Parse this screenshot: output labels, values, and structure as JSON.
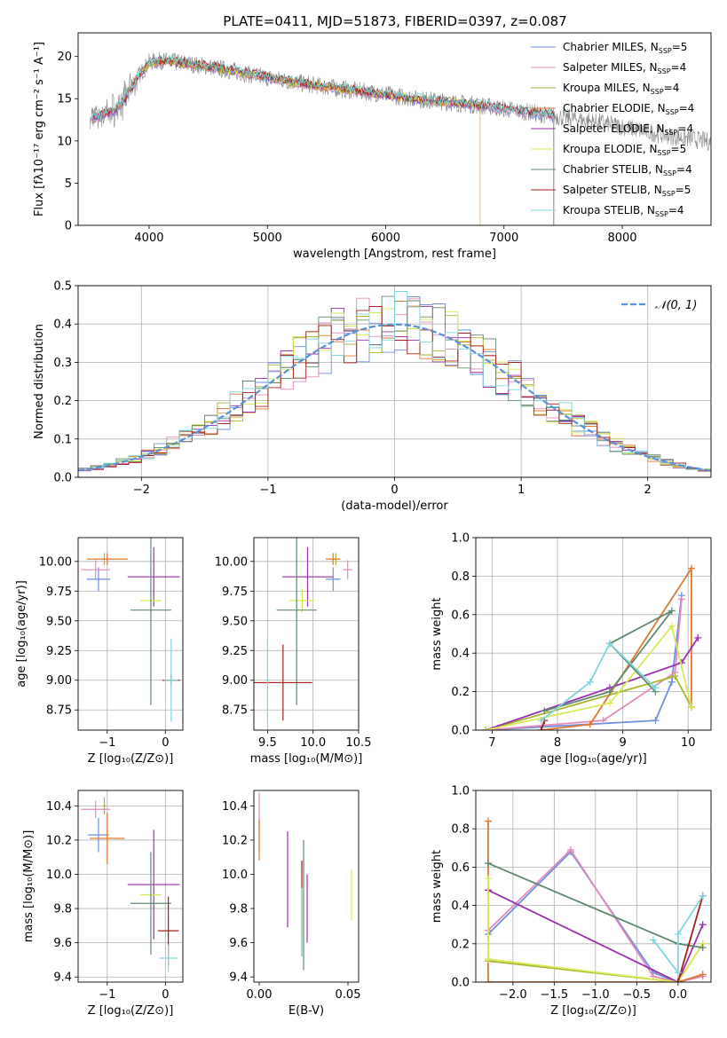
{
  "figure_title": "PLATE=0411, MJD=51873, FIBERID=0397, z=0.087",
  "colors": {
    "chabrier_miles": "#6d8fdd",
    "salpeter_miles": "#e48bbb",
    "kroupa_miles": "#a9b52b",
    "chabrier_elodie": "#e0782e",
    "salpeter_elodie": "#9b2fae",
    "kroupa_elodie": "#d7ea55",
    "chabrier_stelib": "#5e8a6e",
    "salpeter_stelib": "#a81d1d",
    "kroupa_stelib": "#7dd5dd",
    "spectrum_gray": "#8a8a8a",
    "light_gray": "#b0b0b0",
    "normal_curve": "#5b8fd6"
  },
  "chart_data": [
    {
      "id": "spectrum",
      "type": "line",
      "xlabel": "wavelength [Angstrom, rest frame]",
      "ylabel": "Flux [fλ10⁻¹⁷ erg cm⁻² s⁻¹ A⁻¹]",
      "xlim": [
        3400,
        8750
      ],
      "ylim": [
        0,
        22.8
      ],
      "xticks": [
        4000,
        5000,
        6000,
        7000,
        8000
      ],
      "yticks": [
        0,
        5,
        10,
        15,
        20
      ],
      "grid": false,
      "legend_position": "top-right",
      "legend": [
        {
          "label": "Chabrier MILES, N",
          "sub": "SSP",
          "n": "=5",
          "color_key": "chabrier_miles"
        },
        {
          "label": "Salpeter MILES, N",
          "sub": "SSP",
          "n": "=4",
          "color_key": "salpeter_miles"
        },
        {
          "label": "Kroupa MILES, N",
          "sub": "SSP",
          "n": "=4",
          "color_key": "kroupa_miles"
        },
        {
          "label": "Chabrier ELODIE, N",
          "sub": "SSP",
          "n": "=4",
          "color_key": "chabrier_elodie"
        },
        {
          "label": "Salpeter ELODIE, N",
          "sub": "SSP",
          "n": "=4",
          "color_key": "salpeter_elodie"
        },
        {
          "label": "Kroupa ELODIE, N",
          "sub": "SSP",
          "n": "=5",
          "color_key": "kroupa_elodie"
        },
        {
          "label": "Chabrier STELIB, N",
          "sub": "SSP",
          "n": "=4",
          "color_key": "chabrier_stelib"
        },
        {
          "label": "Salpeter STELIB, N",
          "sub": "SSP",
          "n": "=5",
          "color_key": "salpeter_stelib"
        },
        {
          "label": "Kroupa STELIB, N",
          "sub": "SSP",
          "n": "=4",
          "color_key": "kroupa_stelib"
        }
      ],
      "continuum": {
        "x": [
          3500,
          3600,
          3700,
          3800,
          3900,
          4000,
          4100,
          4300,
          4500,
          4700,
          5000,
          5300,
          5600,
          6000,
          6300,
          6600,
          6800,
          7000,
          7200,
          7400,
          7600,
          7800,
          8000,
          8200,
          8400,
          8600,
          8750
        ],
        "y": [
          12.5,
          13.0,
          13.5,
          15.0,
          17.5,
          19.3,
          19.5,
          19.2,
          18.8,
          18.3,
          17.5,
          16.8,
          16.2,
          15.5,
          14.9,
          14.5,
          14.2,
          13.8,
          13.4,
          13.0,
          12.6,
          12.2,
          11.7,
          11.1,
          10.6,
          10.2,
          9.9
        ]
      }
    },
    {
      "id": "residuals",
      "type": "histogram",
      "xlabel": "(data-model)/error",
      "ylabel": "Normed distribution",
      "xlim": [
        -2.5,
        2.5
      ],
      "ylim": [
        0,
        0.5
      ],
      "xticks": [
        -2,
        -1,
        0,
        1,
        2
      ],
      "yticks": [
        0.0,
        0.1,
        0.2,
        0.3,
        0.4,
        0.5
      ],
      "grid": true,
      "legend_position": "top-right",
      "legend_label": "𝒩(0, 1)",
      "reference_curve": "gaussian mean 0, sigma 1"
    },
    {
      "id": "age_vs_Z",
      "type": "scatter",
      "xlabel": "Z [log₁₀(Z/Z⊙)]",
      "ylabel": "age  [log₁₀(age/yr)]",
      "xlim": [
        -1.5,
        0.3
      ],
      "ylim": [
        8.58,
        10.2
      ],
      "xticks": [
        -1,
        0
      ],
      "yticks": [
        8.75,
        9.0,
        9.25,
        9.5,
        9.75,
        10.0
      ],
      "grid": true,
      "points": [
        {
          "color_key": "chabrier_miles",
          "x": -1.15,
          "y": 9.85,
          "xerr": 0.2,
          "yerr": 0.1
        },
        {
          "color_key": "salpeter_miles",
          "x": -1.2,
          "y": 9.93,
          "xerr": 0.25,
          "yerr": 0.08
        },
        {
          "color_key": "kroupa_miles",
          "x": -1.05,
          "y": 10.02,
          "xerr": 0.05,
          "yerr": 0.05
        },
        {
          "color_key": "chabrier_elodie",
          "x": -1.0,
          "y": 10.02,
          "xerr": 0.35,
          "yerr": 0.05
        },
        {
          "color_key": "salpeter_elodie",
          "x": -0.2,
          "y": 9.87,
          "xerr": 0.45,
          "yerr": 0.25
        },
        {
          "color_key": "kroupa_elodie",
          "x": -0.25,
          "y": 9.67,
          "xerr": 0.18,
          "yerr": 0.1
        },
        {
          "color_key": "chabrier_stelib",
          "x": -0.25,
          "y": 9.59,
          "xerr": 0.35,
          "yerr": 0.8
        },
        {
          "color_key": "salpeter_stelib",
          "x": 0.1,
          "y": 9.0,
          "xerr": 0.15,
          "yerr": 0.05
        },
        {
          "color_key": "kroupa_stelib",
          "x": 0.1,
          "y": 9.0,
          "xerr": 0.12,
          "yerr": 0.35
        }
      ]
    },
    {
      "id": "age_vs_mass",
      "type": "scatter",
      "xlabel": "mass [log₁₀(M/M⊙)]",
      "ylabel": "",
      "xlim": [
        9.35,
        10.5
      ],
      "ylim": [
        8.58,
        10.2
      ],
      "xticks": [
        9.5,
        10.0,
        10.5
      ],
      "yticks": [
        8.75,
        9.0,
        9.25,
        9.5,
        9.75,
        10.0
      ],
      "grid": true,
      "points": [
        {
          "color_key": "chabrier_miles",
          "x": 10.22,
          "y": 9.85,
          "xerr": 0.08,
          "yerr": 0.1
        },
        {
          "color_key": "salpeter_miles",
          "x": 10.38,
          "y": 9.93,
          "xerr": 0.05,
          "yerr": 0.08
        },
        {
          "color_key": "kroupa_miles",
          "x": 10.25,
          "y": 10.02,
          "xerr": 0.05,
          "yerr": 0.05
        },
        {
          "color_key": "chabrier_elodie",
          "x": 10.22,
          "y": 10.02,
          "xerr": 0.08,
          "yerr": 0.05
        },
        {
          "color_key": "salpeter_elodie",
          "x": 9.94,
          "y": 9.87,
          "xerr": 0.28,
          "yerr": 0.25
        },
        {
          "color_key": "kroupa_elodie",
          "x": 9.88,
          "y": 9.67,
          "xerr": 0.14,
          "yerr": 0.1
        },
        {
          "color_key": "chabrier_stelib",
          "x": 9.82,
          "y": 9.59,
          "xerr": 0.22,
          "yerr": 0.8
        },
        {
          "color_key": "salpeter_stelib",
          "x": 9.67,
          "y": 8.98,
          "xerr": 0.32,
          "yerr": 0.32
        },
        {
          "color_key": "kroupa_stelib",
          "x": 9.5,
          "y": 9.0,
          "xerr": 0.02,
          "yerr": 0.35
        }
      ]
    },
    {
      "id": "mass_weight_vs_age",
      "type": "line",
      "xlabel": "age  [log₁₀(age/yr)]",
      "ylabel": "mass weight",
      "xlim": [
        6.75,
        10.35
      ],
      "ylim": [
        0,
        1.0
      ],
      "xticks": [
        7,
        8,
        9,
        10
      ],
      "yticks": [
        0.0,
        0.2,
        0.4,
        0.6,
        0.8,
        1.0
      ],
      "grid": true,
      "series": [
        {
          "color_key": "chabrier_miles",
          "x": [
            6.9,
            9.5,
            9.75,
            9.9
          ],
          "y": [
            0.0,
            0.05,
            0.25,
            0.7
          ]
        },
        {
          "color_key": "salpeter_miles",
          "x": [
            6.9,
            8.7,
            9.8,
            9.9
          ],
          "y": [
            0.0,
            0.05,
            0.3,
            0.68
          ]
        },
        {
          "color_key": "kroupa_miles",
          "x": [
            6.9,
            9.8,
            10.05
          ],
          "y": [
            0.0,
            0.28,
            0.12
          ]
        },
        {
          "color_key": "chabrier_elodie",
          "x": [
            7.75,
            8.5,
            10.05,
            10.05
          ],
          "y": [
            0.0,
            0.03,
            0.84,
            0.12
          ]
        },
        {
          "color_key": "salpeter_elodie",
          "x": [
            6.9,
            8.8,
            9.9,
            10.15
          ],
          "y": [
            0.0,
            0.22,
            0.35,
            0.48
          ]
        },
        {
          "color_key": "kroupa_elodie",
          "x": [
            6.9,
            8.8,
            9.75,
            10.05
          ],
          "y": [
            0.0,
            0.14,
            0.54,
            0.12
          ]
        },
        {
          "color_key": "chabrier_stelib",
          "x": [
            7.8,
            8.8,
            9.75,
            8.8,
            9.5
          ],
          "y": [
            0.1,
            0.2,
            0.62,
            0.45,
            0.2
          ]
        },
        {
          "color_key": "salpeter_stelib",
          "x": [
            7.75,
            7.8
          ],
          "y": [
            0.0,
            0.05
          ]
        },
        {
          "color_key": "kroupa_stelib",
          "x": [
            7.75,
            8.5,
            8.8,
            9.5
          ],
          "y": [
            0.05,
            0.25,
            0.45,
            0.22
          ]
        }
      ]
    },
    {
      "id": "mass_vs_Z",
      "type": "scatter",
      "xlabel": "Z [log₁₀(Z/Z⊙)]",
      "ylabel": "mass [log₁₀(M/M⊙)]",
      "xlim": [
        -1.5,
        0.3
      ],
      "ylim": [
        9.37,
        10.49
      ],
      "xticks": [
        -1,
        0
      ],
      "yticks": [
        9.4,
        9.6,
        9.8,
        10.0,
        10.2,
        10.4
      ],
      "grid": true,
      "points": [
        {
          "color_key": "chabrier_miles",
          "x": -1.15,
          "y": 10.23,
          "xerr": 0.18,
          "yerr": 0.1
        },
        {
          "color_key": "salpeter_miles",
          "x": -1.2,
          "y": 10.38,
          "xerr": 0.25,
          "yerr": 0.05
        },
        {
          "color_key": "kroupa_miles",
          "x": -1.05,
          "y": 10.4,
          "xerr": 0.03,
          "yerr": 0.05
        },
        {
          "color_key": "chabrier_elodie",
          "x": -1.0,
          "y": 10.21,
          "xerr": 0.3,
          "yerr": 0.15
        },
        {
          "color_key": "salpeter_elodie",
          "x": -0.2,
          "y": 9.94,
          "xerr": 0.45,
          "yerr": 0.32
        },
        {
          "color_key": "kroupa_elodie",
          "x": -0.25,
          "y": 9.88,
          "xerr": 0.18,
          "yerr": 0.08
        },
        {
          "color_key": "chabrier_stelib",
          "x": -0.25,
          "y": 9.83,
          "xerr": 0.35,
          "yerr": 0.3
        },
        {
          "color_key": "salpeter_stelib",
          "x": 0.05,
          "y": 9.67,
          "xerr": 0.18,
          "yerr": 0.2
        },
        {
          "color_key": "kroupa_stelib",
          "x": 0.05,
          "y": 9.51,
          "xerr": 0.15,
          "yerr": 0.08
        }
      ]
    },
    {
      "id": "mass_vs_ebv",
      "type": "scatter",
      "xlabel": "E(B-V)",
      "ylabel": "",
      "xlim": [
        -0.003,
        0.056
      ],
      "ylim": [
        9.37,
        10.49
      ],
      "xticks": [
        0.0,
        0.05
      ],
      "yticks": [
        9.4,
        9.6,
        9.8,
        10.0,
        10.2,
        10.4
      ],
      "grid": false,
      "points": [
        {
          "color_key": "chabrier_miles",
          "x": 0.0,
          "y": 10.23,
          "yerr": 0.1
        },
        {
          "color_key": "salpeter_miles",
          "x": 0.0,
          "y": 10.38,
          "yerr": 0.1
        },
        {
          "color_key": "chabrier_elodie",
          "x": 0.0,
          "y": 10.2,
          "yerr": 0.12
        },
        {
          "color_key": "salpeter_elodie",
          "x": 0.016,
          "y": 9.97,
          "yerr": 0.28
        },
        {
          "color_key": "salpeter_stelib",
          "x": 0.024,
          "y": 9.8,
          "yerr": 0.28
        },
        {
          "color_key": "chabrier_stelib",
          "x": 0.025,
          "y": 9.82,
          "yerr": 0.38
        },
        {
          "color_key": "kroupa_stelib",
          "x": 0.024,
          "y": 9.72,
          "yerr": 0.2
        },
        {
          "color_key": "salpeter_elodie",
          "x": 0.027,
          "y": 9.8,
          "yerr": 0.2
        },
        {
          "color_key": "kroupa_elodie",
          "x": 0.052,
          "y": 9.88,
          "yerr": 0.15
        }
      ]
    },
    {
      "id": "mass_weight_vs_Z",
      "type": "line",
      "xlabel": "Z [log₁₀(Z/Z⊙)]",
      "ylabel": "mass weight",
      "xlim": [
        -2.45,
        0.4
      ],
      "ylim": [
        0,
        1.0
      ],
      "xticks": [
        -2.0,
        -1.5,
        -1.0,
        -0.5,
        0.0
      ],
      "yticks": [
        0.0,
        0.2,
        0.4,
        0.6,
        0.8,
        1.0
      ],
      "grid": true,
      "series": [
        {
          "color_key": "chabrier_miles",
          "x": [
            -2.3,
            -1.3,
            -0.3,
            0.0
          ],
          "y": [
            0.25,
            0.68,
            0.05,
            0.0
          ]
        },
        {
          "color_key": "salpeter_miles",
          "x": [
            -2.3,
            -1.3,
            -0.3,
            0.0,
            0.3
          ],
          "y": [
            0.27,
            0.69,
            0.03,
            0.0,
            0.03
          ]
        },
        {
          "color_key": "kroupa_miles",
          "x": [
            -2.3,
            0.0,
            0.3
          ],
          "y": [
            0.11,
            0.0,
            0.2
          ]
        },
        {
          "color_key": "chabrier_elodie",
          "x": [
            -2.3,
            -2.3,
            0.0,
            0.3
          ],
          "y": [
            0.84,
            0.0,
            0.0,
            0.04
          ]
        },
        {
          "color_key": "salpeter_elodie",
          "x": [
            -2.3,
            0.0,
            0.3
          ],
          "y": [
            0.48,
            0.0,
            0.3
          ]
        },
        {
          "color_key": "kroupa_elodie",
          "x": [
            -2.3,
            -2.3,
            0.0,
            0.3
          ],
          "y": [
            0.54,
            0.12,
            0.0,
            0.2
          ]
        },
        {
          "color_key": "chabrier_stelib",
          "x": [
            -2.3,
            0.0,
            0.3
          ],
          "y": [
            0.62,
            0.2,
            0.18
          ]
        },
        {
          "color_key": "salpeter_stelib",
          "x": [
            0.0,
            0.3
          ],
          "y": [
            0.0,
            0.45
          ]
        },
        {
          "color_key": "kroupa_stelib",
          "x": [
            -0.3,
            0.0,
            0.0,
            0.3
          ],
          "y": [
            0.22,
            0.05,
            0.25,
            0.45
          ]
        }
      ]
    }
  ]
}
